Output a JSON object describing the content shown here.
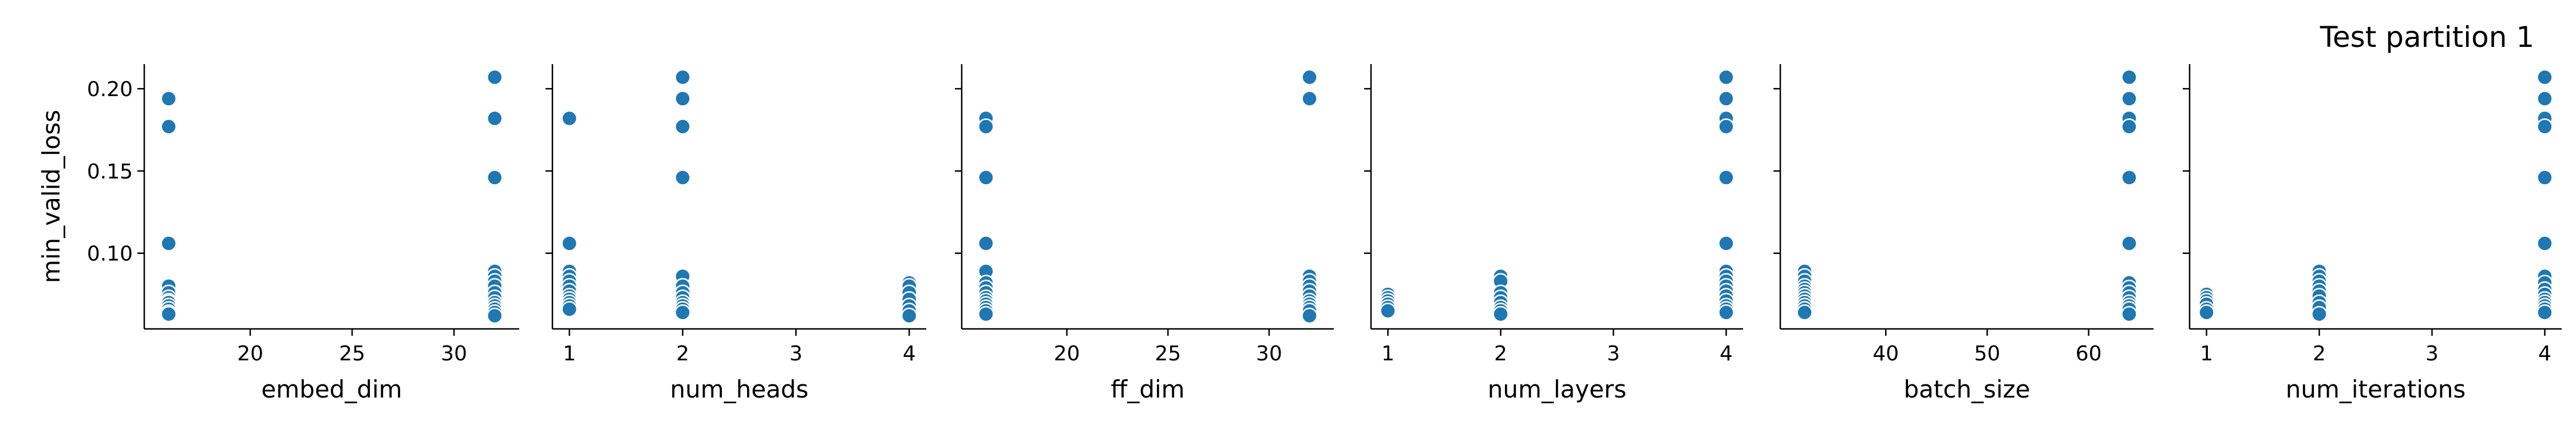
{
  "title": "Test partition 1",
  "chart_data": [
    {
      "type": "scatter",
      "xlabel": "embed_dim",
      "ylabel": "min_valid_loss",
      "xlim": [
        14.8,
        33.2
      ],
      "ylim": [
        0.054,
        0.215
      ],
      "xticks": [
        "20",
        "25",
        "30"
      ],
      "xtick_values": [
        20,
        25,
        30
      ],
      "yticks": [
        "0.10",
        "0.15",
        "0.20"
      ],
      "ytick_values": [
        0.1,
        0.15,
        0.2
      ],
      "x": [
        16,
        16,
        16,
        16,
        16,
        16,
        16,
        16,
        16,
        16,
        16,
        16,
        32,
        32,
        32,
        32,
        32,
        32,
        32,
        32,
        32,
        32,
        32,
        32,
        32,
        32
      ],
      "y": [
        0.194,
        0.177,
        0.106,
        0.08,
        0.076,
        0.073,
        0.071,
        0.07,
        0.068,
        0.066,
        0.064,
        0.063,
        0.207,
        0.182,
        0.146,
        0.089,
        0.086,
        0.083,
        0.08,
        0.076,
        0.073,
        0.07,
        0.068,
        0.066,
        0.064,
        0.062
      ]
    },
    {
      "type": "scatter",
      "xlabel": "num_heads",
      "ylabel": "",
      "xlim": [
        0.85,
        4.15
      ],
      "ylim": [
        0.054,
        0.215
      ],
      "xticks": [
        "1",
        "2",
        "3",
        "4"
      ],
      "xtick_values": [
        1,
        2,
        3,
        4
      ],
      "x": [
        1,
        1,
        1,
        1,
        1,
        1,
        1,
        1,
        1,
        1,
        1,
        1,
        2,
        2,
        2,
        2,
        2,
        2,
        2,
        2,
        2,
        2,
        2,
        2,
        4,
        4,
        4,
        4,
        4,
        4,
        4
      ],
      "y": [
        0.182,
        0.106,
        0.089,
        0.086,
        0.083,
        0.08,
        0.077,
        0.074,
        0.072,
        0.07,
        0.068,
        0.066,
        0.207,
        0.194,
        0.177,
        0.146,
        0.086,
        0.08,
        0.076,
        0.073,
        0.07,
        0.068,
        0.066,
        0.064,
        0.082,
        0.08,
        0.076,
        0.072,
        0.068,
        0.065,
        0.062
      ]
    },
    {
      "type": "scatter",
      "xlabel": "ff_dim",
      "ylabel": "",
      "xlim": [
        14.8,
        33.2
      ],
      "ylim": [
        0.054,
        0.215
      ],
      "xticks": [
        "20",
        "25",
        "30"
      ],
      "xtick_values": [
        20,
        25,
        30
      ],
      "x": [
        16,
        16,
        16,
        16,
        16,
        16,
        16,
        16,
        16,
        16,
        16,
        16,
        16,
        16,
        32,
        32,
        32,
        32,
        32,
        32,
        32,
        32,
        32,
        32,
        32,
        32
      ],
      "y": [
        0.182,
        0.177,
        0.146,
        0.106,
        0.089,
        0.082,
        0.079,
        0.076,
        0.073,
        0.071,
        0.069,
        0.067,
        0.065,
        0.063,
        0.207,
        0.194,
        0.086,
        0.083,
        0.08,
        0.077,
        0.074,
        0.071,
        0.069,
        0.067,
        0.065,
        0.062
      ]
    },
    {
      "type": "scatter",
      "xlabel": "num_layers",
      "ylabel": "",
      "xlim": [
        0.85,
        4.15
      ],
      "ylim": [
        0.054,
        0.215
      ],
      "xticks": [
        "1",
        "2",
        "3",
        "4"
      ],
      "xtick_values": [
        1,
        2,
        3,
        4
      ],
      "x": [
        1,
        1,
        1,
        1,
        1,
        1,
        2,
        2,
        2,
        2,
        2,
        2,
        2,
        2,
        4,
        4,
        4,
        4,
        4,
        4,
        4,
        4,
        4,
        4,
        4,
        4,
        4,
        4,
        4,
        4
      ],
      "y": [
        0.075,
        0.073,
        0.071,
        0.069,
        0.067,
        0.065,
        0.086,
        0.083,
        0.076,
        0.073,
        0.07,
        0.067,
        0.065,
        0.063,
        0.207,
        0.194,
        0.182,
        0.177,
        0.146,
        0.106,
        0.089,
        0.086,
        0.083,
        0.08,
        0.077,
        0.074,
        0.071,
        0.068,
        0.066,
        0.064
      ]
    },
    {
      "type": "scatter",
      "xlabel": "batch_size",
      "ylabel": "",
      "xlim": [
        29.6,
        66.4
      ],
      "ylim": [
        0.054,
        0.215
      ],
      "xticks": [
        "40",
        "50",
        "60"
      ],
      "xtick_values": [
        40,
        50,
        60
      ],
      "x": [
        32,
        32,
        32,
        32,
        32,
        32,
        32,
        32,
        32,
        32,
        32,
        32,
        64,
        64,
        64,
        64,
        64,
        64,
        64,
        64,
        64,
        64,
        64,
        64,
        64,
        64
      ],
      "y": [
        0.089,
        0.086,
        0.083,
        0.08,
        0.078,
        0.076,
        0.074,
        0.072,
        0.07,
        0.068,
        0.066,
        0.064,
        0.207,
        0.194,
        0.182,
        0.177,
        0.146,
        0.106,
        0.082,
        0.079,
        0.076,
        0.073,
        0.07,
        0.068,
        0.066,
        0.063
      ]
    },
    {
      "type": "scatter",
      "xlabel": "num_iterations",
      "ylabel": "",
      "xlim": [
        0.85,
        4.15
      ],
      "ylim": [
        0.054,
        0.215
      ],
      "xticks": [
        "1",
        "2",
        "3",
        "4"
      ],
      "xtick_values": [
        1,
        2,
        3,
        4
      ],
      "x": [
        1,
        1,
        1,
        1,
        1,
        1,
        2,
        2,
        2,
        2,
        2,
        2,
        2,
        2,
        2,
        4,
        4,
        4,
        4,
        4,
        4,
        4,
        4,
        4,
        4,
        4,
        4,
        4,
        4,
        4
      ],
      "y": [
        0.075,
        0.073,
        0.071,
        0.069,
        0.066,
        0.064,
        0.089,
        0.086,
        0.083,
        0.08,
        0.077,
        0.074,
        0.07,
        0.067,
        0.063,
        0.207,
        0.194,
        0.182,
        0.177,
        0.146,
        0.106,
        0.086,
        0.082,
        0.078,
        0.075,
        0.072,
        0.07,
        0.068,
        0.066,
        0.064
      ]
    }
  ],
  "colors": {
    "marker": "#1f77b4",
    "marker_edge": "#ffffff",
    "axis": "#000000"
  }
}
